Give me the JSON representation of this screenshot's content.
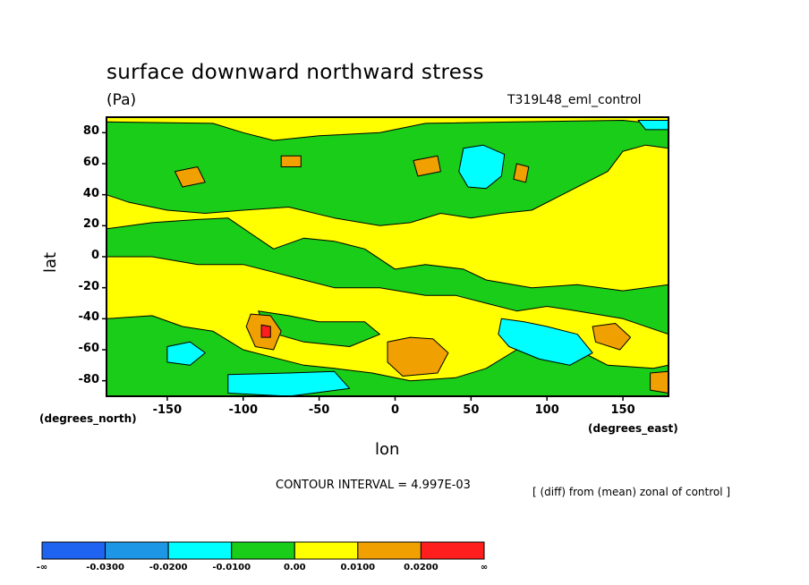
{
  "chart_data": {
    "type": "heatmap",
    "title": "surface downward northward stress",
    "units": "(Pa)",
    "dataset": "T319L48_eml_control",
    "xlabel": "lon",
    "ylabel": "lat",
    "x_units": "(degrees_east)",
    "y_units": "(degrees_north)",
    "xlim": [
      -190,
      180
    ],
    "ylim": [
      -90,
      90
    ],
    "x_ticks": [
      "-150",
      "-100",
      "-50",
      "0",
      "50",
      "100",
      "150"
    ],
    "x_tick_values": [
      -150,
      -100,
      -50,
      0,
      50,
      100,
      150
    ],
    "y_ticks": [
      "80",
      "60",
      "40",
      "20",
      "0",
      "-20",
      "-40",
      "-60",
      "-80"
    ],
    "y_tick_values": [
      80,
      60,
      40,
      20,
      0,
      -20,
      -40,
      -60,
      -80
    ],
    "contour_interval": "CONTOUR INTERVAL = 4.997E-03",
    "note": "[ (diff) from (mean) zonal of control ]",
    "colorbar": {
      "labels": [
        "-∞",
        "-0.0300",
        "-0.0200",
        "-0.0100",
        "0.00",
        "0.0100",
        "0.0200",
        "∞"
      ],
      "colors": [
        "#1e64f0",
        "#1e96e6",
        "#00ffff",
        "#19cd19",
        "#ffff00",
        "#f0a000",
        "#ff1e1e"
      ]
    },
    "regions": [
      {
        "level": "0 to 0.0100",
        "color": "#ffff00",
        "points": [
          [
            -190,
            90
          ],
          [
            180,
            90
          ],
          [
            180,
            -90
          ],
          [
            -190,
            -90
          ]
        ]
      },
      {
        "level": "-0.0100 to 0",
        "color": "#19cd19",
        "points": [
          [
            -190,
            87
          ],
          [
            -120,
            86
          ],
          [
            -100,
            80
          ],
          [
            -80,
            75
          ],
          [
            -50,
            78
          ],
          [
            -10,
            80
          ],
          [
            20,
            86
          ],
          [
            80,
            87
          ],
          [
            150,
            88
          ],
          [
            180,
            85
          ],
          [
            180,
            70
          ],
          [
            165,
            72
          ],
          [
            150,
            68
          ],
          [
            140,
            55
          ],
          [
            110,
            40
          ],
          [
            90,
            30
          ],
          [
            70,
            28
          ],
          [
            50,
            25
          ],
          [
            30,
            28
          ],
          [
            10,
            22
          ],
          [
            -10,
            20
          ],
          [
            -40,
            25
          ],
          [
            -70,
            32
          ],
          [
            -100,
            30
          ],
          [
            -125,
            28
          ],
          [
            -150,
            30
          ],
          [
            -175,
            35
          ],
          [
            -190,
            40
          ]
        ]
      },
      {
        "level": "-0.0100 to 0",
        "color": "#19cd19",
        "points": [
          [
            -190,
            18
          ],
          [
            -160,
            22
          ],
          [
            -130,
            24
          ],
          [
            -110,
            25
          ],
          [
            -95,
            15
          ],
          [
            -80,
            5
          ],
          [
            -60,
            12
          ],
          [
            -40,
            10
          ],
          [
            -20,
            5
          ],
          [
            0,
            -8
          ],
          [
            20,
            -5
          ],
          [
            45,
            -8
          ],
          [
            60,
            -15
          ],
          [
            90,
            -20
          ],
          [
            120,
            -18
          ],
          [
            150,
            -22
          ],
          [
            180,
            -18
          ],
          [
            180,
            -50
          ],
          [
            150,
            -40
          ],
          [
            120,
            -35
          ],
          [
            100,
            -32
          ],
          [
            80,
            -35
          ],
          [
            60,
            -30
          ],
          [
            40,
            -25
          ],
          [
            20,
            -25
          ],
          [
            -10,
            -20
          ],
          [
            -40,
            -20
          ],
          [
            -60,
            -15
          ],
          [
            -80,
            -10
          ],
          [
            -100,
            -5
          ],
          [
            -130,
            -5
          ],
          [
            -160,
            0
          ],
          [
            -190,
            0
          ]
        ]
      },
      {
        "level": "-0.0100 to 0",
        "color": "#19cd19",
        "points": [
          [
            -190,
            -40
          ],
          [
            -160,
            -38
          ],
          [
            -140,
            -45
          ],
          [
            -120,
            -48
          ],
          [
            -100,
            -60
          ],
          [
            -80,
            -65
          ],
          [
            -60,
            -70
          ],
          [
            -40,
            -72
          ],
          [
            -15,
            -75
          ],
          [
            10,
            -80
          ],
          [
            40,
            -78
          ],
          [
            60,
            -72
          ],
          [
            80,
            -60
          ],
          [
            100,
            -55
          ],
          [
            120,
            -60
          ],
          [
            140,
            -70
          ],
          [
            170,
            -72
          ],
          [
            180,
            -70
          ],
          [
            180,
            -90
          ],
          [
            -190,
            -90
          ]
        ]
      },
      {
        "level": "-0.0100 to 0",
        "color": "#19cd19",
        "points": [
          [
            -90,
            -35
          ],
          [
            -70,
            -38
          ],
          [
            -50,
            -42
          ],
          [
            -20,
            -42
          ],
          [
            -10,
            -50
          ],
          [
            -30,
            -58
          ],
          [
            -60,
            -55
          ],
          [
            -85,
            -48
          ]
        ]
      },
      {
        "level": "-0.0200 to -0.0100",
        "color": "#00ffff",
        "points": [
          [
            45,
            70
          ],
          [
            58,
            72
          ],
          [
            72,
            66
          ],
          [
            70,
            52
          ],
          [
            60,
            44
          ],
          [
            48,
            45
          ],
          [
            42,
            55
          ]
        ]
      },
      {
        "level": "-0.0200 to -0.0100",
        "color": "#00ffff",
        "points": [
          [
            -150,
            -58
          ],
          [
            -135,
            -55
          ],
          [
            -125,
            -62
          ],
          [
            -135,
            -70
          ],
          [
            -150,
            -68
          ]
        ]
      },
      {
        "level": "-0.0200 to -0.0100",
        "color": "#00ffff",
        "points": [
          [
            -110,
            -76
          ],
          [
            -70,
            -75
          ],
          [
            -40,
            -74
          ],
          [
            -30,
            -85
          ],
          [
            -70,
            -90
          ],
          [
            -110,
            -88
          ]
        ]
      },
      {
        "level": "-0.0200 to -0.0100",
        "color": "#00ffff",
        "points": [
          [
            70,
            -40
          ],
          [
            85,
            -42
          ],
          [
            100,
            -45
          ],
          [
            120,
            -50
          ],
          [
            130,
            -62
          ],
          [
            115,
            -70
          ],
          [
            95,
            -66
          ],
          [
            75,
            -58
          ],
          [
            68,
            -50
          ]
        ]
      },
      {
        "level": "-0.0200 to -0.0100",
        "color": "#00ffff",
        "points": [
          [
            160,
            88
          ],
          [
            180,
            88
          ],
          [
            180,
            82
          ],
          [
            165,
            82
          ]
        ]
      },
      {
        "level": "0.0100 to 0.0200",
        "color": "#f0a000",
        "points": [
          [
            -95,
            -37
          ],
          [
            -82,
            -38
          ],
          [
            -75,
            -48
          ],
          [
            -80,
            -60
          ],
          [
            -92,
            -58
          ],
          [
            -98,
            -45
          ]
        ]
      },
      {
        "level": "0.0100 to 0.0200",
        "color": "#f0a000",
        "points": [
          [
            -5,
            -55
          ],
          [
            10,
            -52
          ],
          [
            25,
            -53
          ],
          [
            35,
            -62
          ],
          [
            28,
            -75
          ],
          [
            5,
            -77
          ],
          [
            -5,
            -68
          ]
        ]
      },
      {
        "level": "0.0100 to 0.0200",
        "color": "#f0a000",
        "points": [
          [
            130,
            -45
          ],
          [
            145,
            -43
          ],
          [
            155,
            -52
          ],
          [
            148,
            -60
          ],
          [
            132,
            -55
          ]
        ]
      },
      {
        "level": "0.0100 to 0.0200",
        "color": "#f0a000",
        "points": [
          [
            -145,
            55
          ],
          [
            -130,
            58
          ],
          [
            -125,
            48
          ],
          [
            -140,
            45
          ]
        ]
      },
      {
        "level": "0.0100 to 0.0200",
        "color": "#f0a000",
        "points": [
          [
            12,
            62
          ],
          [
            28,
            65
          ],
          [
            30,
            55
          ],
          [
            15,
            52
          ]
        ]
      },
      {
        "level": "0.0100 to 0.0200",
        "color": "#f0a000",
        "points": [
          [
            80,
            60
          ],
          [
            88,
            58
          ],
          [
            86,
            48
          ],
          [
            78,
            50
          ]
        ]
      },
      {
        "level": "0.0100 to 0.0200",
        "color": "#f0a000",
        "points": [
          [
            -75,
            65
          ],
          [
            -62,
            65
          ],
          [
            -62,
            58
          ],
          [
            -75,
            58
          ]
        ]
      },
      {
        "level": "0.0100 to 0.0200",
        "color": "#f0a000",
        "points": [
          [
            168,
            -75
          ],
          [
            180,
            -74
          ],
          [
            180,
            -88
          ],
          [
            168,
            -86
          ]
        ]
      },
      {
        "level": "0.0200 to ∞",
        "color": "#ff1e1e",
        "points": [
          [
            -88,
            -44
          ],
          [
            -82,
            -45
          ],
          [
            -82,
            -52
          ],
          [
            -88,
            -52
          ]
        ]
      }
    ]
  }
}
